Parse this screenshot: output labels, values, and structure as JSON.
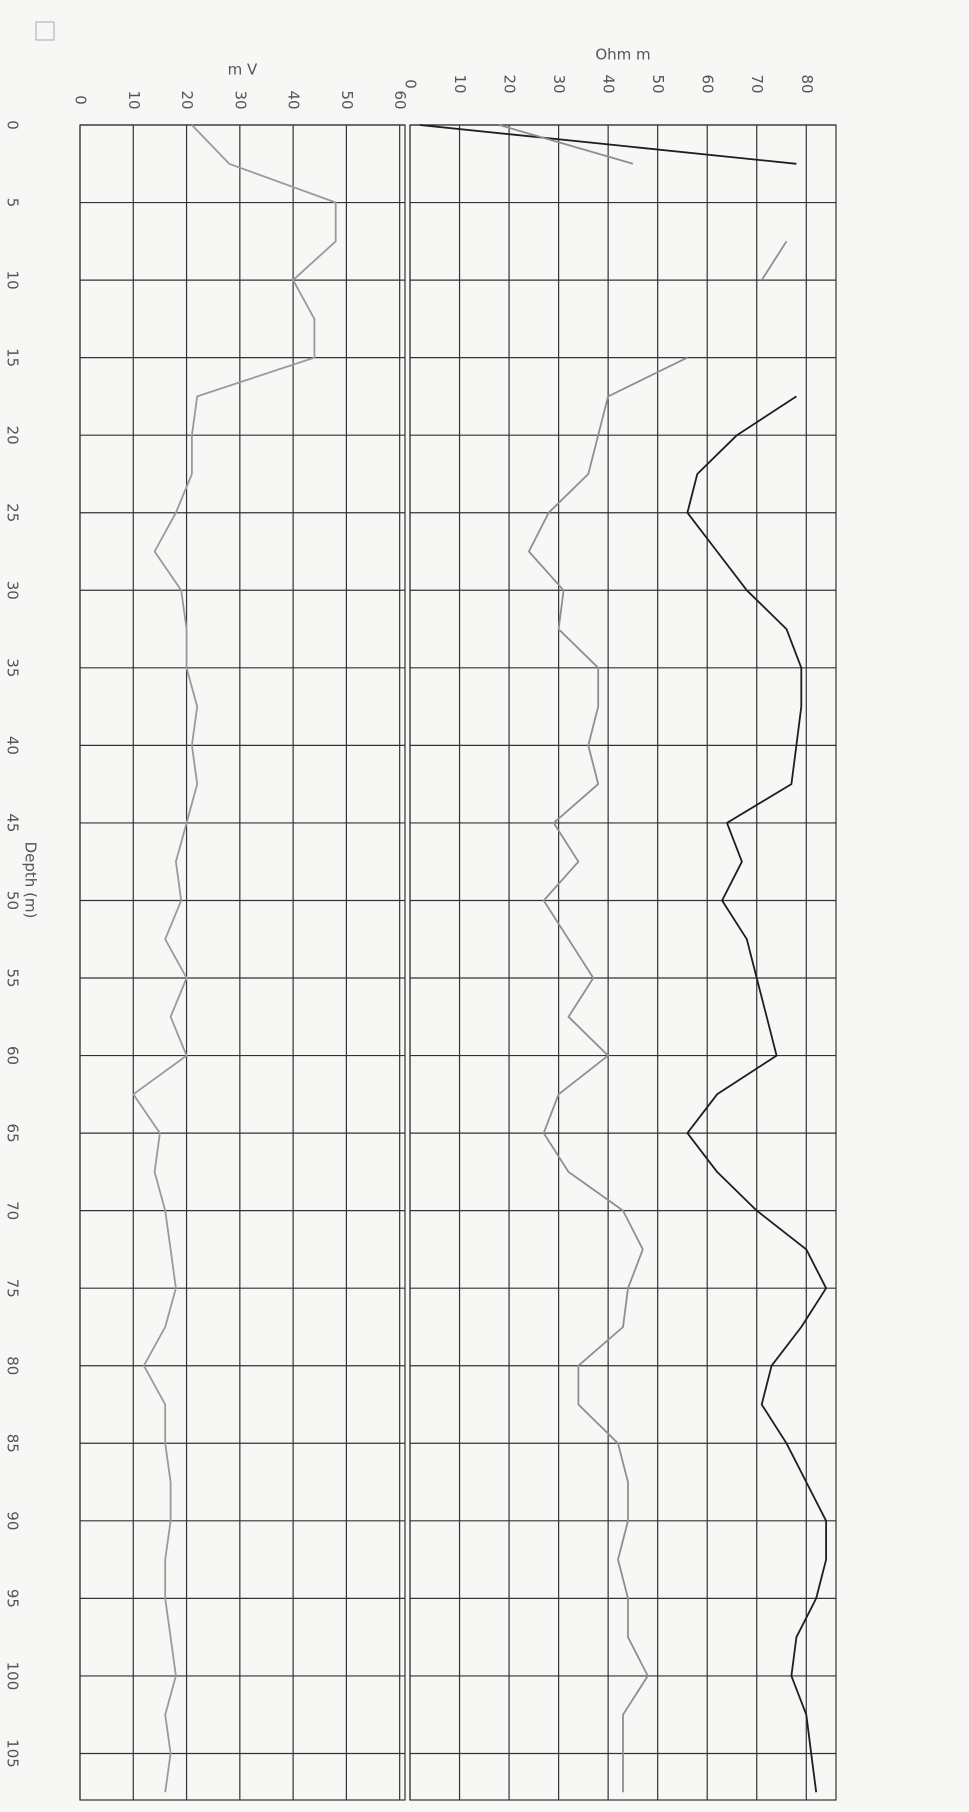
{
  "chart_data": {
    "type": "line",
    "xlabel": "Depth (m)",
    "xlim": [
      0,
      108
    ],
    "xticks": [
      0,
      5,
      10,
      15,
      20,
      25,
      30,
      35,
      40,
      45,
      50,
      55,
      60,
      65,
      70,
      75,
      80,
      85,
      90,
      95,
      100,
      105
    ],
    "x": [
      0,
      2.5,
      5,
      7.5,
      10,
      12.5,
      15,
      17.5,
      20,
      22.5,
      25,
      27.5,
      30,
      32.5,
      35,
      37.5,
      40,
      42.5,
      45,
      47.5,
      50,
      52.5,
      55,
      57.5,
      60,
      62.5,
      65,
      67.5,
      70,
      72.5,
      75,
      77.5,
      80,
      82.5,
      85,
      87.5,
      90,
      92.5,
      95,
      97.5,
      100,
      102.5,
      105,
      107.5
    ],
    "grid": true,
    "panels": [
      {
        "ylabel": "m V",
        "ylim": [
          0,
          61
        ],
        "yticks": [
          0,
          10,
          20,
          30,
          40,
          50,
          60
        ],
        "series": [
          {
            "color": "#9a9a9a",
            "values": [
              21,
              28,
              48,
              48,
              40,
              44,
              44,
              22,
              21,
              21,
              18,
              14,
              19,
              20,
              20,
              22,
              21,
              22,
              20,
              18,
              19,
              16,
              20,
              17,
              20,
              10,
              15,
              14,
              16,
              17,
              18,
              16,
              12,
              16,
              16,
              17,
              17,
              16,
              16,
              17,
              18,
              16,
              17,
              16
            ]
          }
        ]
      },
      {
        "ylabel": "Ohm m",
        "ylim": [
          0,
          86
        ],
        "yticks": [
          0,
          10,
          20,
          30,
          40,
          50,
          60,
          70,
          80
        ],
        "series": [
          {
            "color": "#1e1e1e",
            "values": [
              2,
              78,
              null,
              null,
              null,
              null,
              null,
              78,
              66,
              58,
              56,
              62,
              68,
              76,
              79,
              79,
              78,
              77,
              64,
              67,
              63,
              68,
              70,
              72,
              74,
              62,
              56,
              62,
              70,
              80,
              84,
              79,
              73,
              71,
              76,
              80,
              84,
              84,
              82,
              78,
              77,
              80,
              81,
              82
            ]
          },
          {
            "color": "#8f8f8f",
            "values": [
              18,
              45,
              null,
              76,
              71,
              null,
              56,
              40,
              38,
              36,
              28,
              24,
              31,
              30,
              38,
              38,
              36,
              38,
              29,
              34,
              27,
              32,
              37,
              32,
              40,
              30,
              27,
              32,
              43,
              47,
              44,
              43,
              34,
              34,
              42,
              44,
              44,
              42,
              44,
              44,
              48,
              43,
              43,
              43
            ]
          }
        ]
      }
    ]
  }
}
